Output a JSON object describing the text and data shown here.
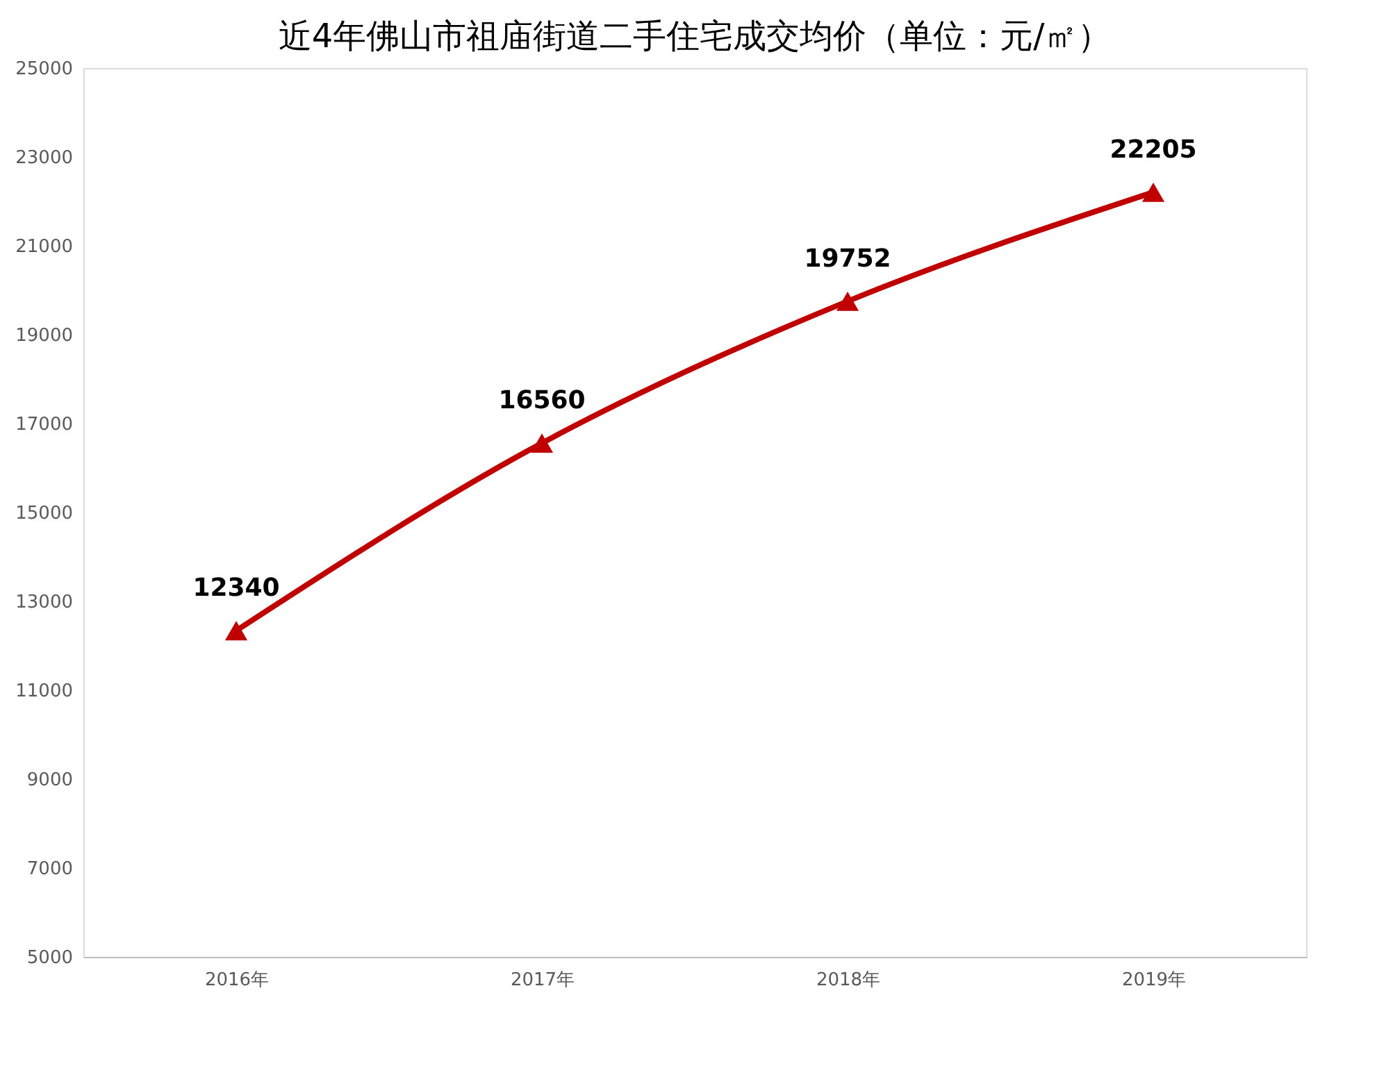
{
  "chart_data": {
    "type": "line",
    "title": "近4年佛山市祖庙街道二手住宅成交均价（单位：元/㎡）",
    "categories": [
      "2016年",
      "2017年",
      "2018年",
      "2019年"
    ],
    "series": [
      {
        "color": "#c00000",
        "values": [
          12340,
          16560,
          19752,
          22205
        ]
      }
    ],
    "ylim": [
      5000,
      25000
    ],
    "yticks": [
      5000,
      7000,
      9000,
      11000,
      13000,
      15000,
      17000,
      19000,
      21000,
      23000,
      25000
    ],
    "grid": false,
    "marker": "triangle",
    "line_style": "solid",
    "data_labels": true
  }
}
